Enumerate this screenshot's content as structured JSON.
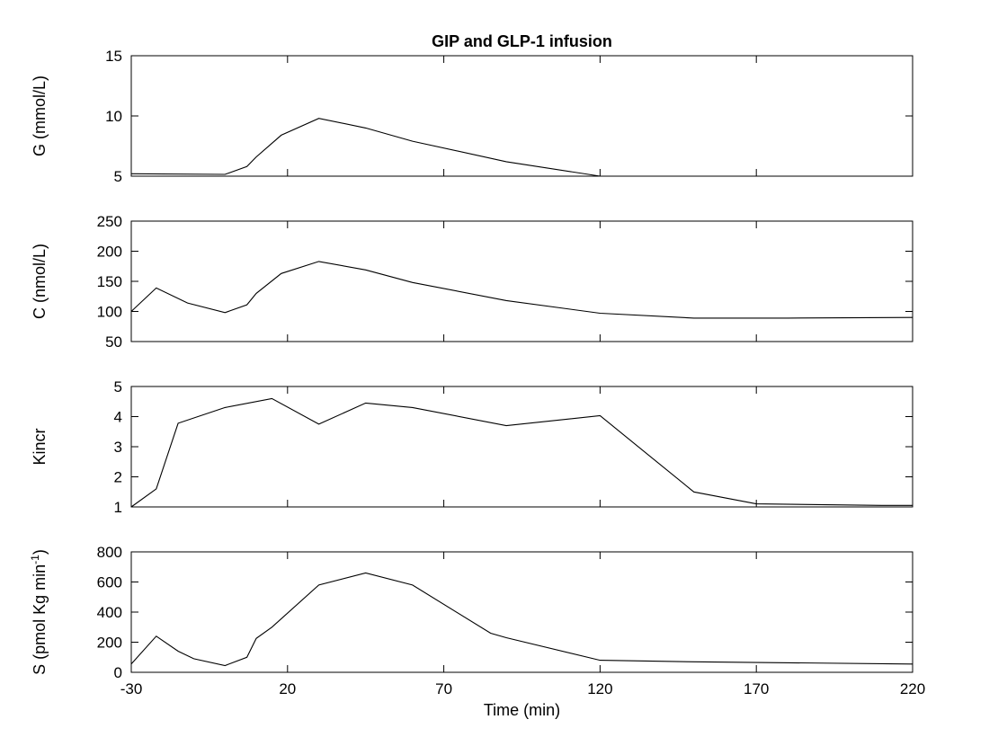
{
  "chart_data": {
    "type": "line",
    "title": "GIP and GLP-1 infusion",
    "xlabel": "Time (min)",
    "xlim": [
      -30,
      220
    ],
    "xticks": [
      -30,
      20,
      70,
      120,
      170,
      220
    ],
    "xtick_labels": [
      "-30",
      "20",
      "70",
      "120",
      "170",
      "220"
    ],
    "panels": [
      {
        "ylabel": "G (mmol/L)",
        "ylim": [
          5,
          15
        ],
        "yticks": [
          5,
          10,
          15
        ],
        "ytick_labels": [
          "5",
          "10",
          "15"
        ],
        "x": [
          -30,
          0,
          7,
          10,
          18,
          30,
          45,
          60,
          90,
          120,
          125
        ],
        "y": [
          5.2,
          5.15,
          5.8,
          6.6,
          8.4,
          9.8,
          9.0,
          7.9,
          6.2,
          5.0,
          5.0
        ]
      },
      {
        "ylabel": "C (nmol/L)",
        "ylim": [
          50,
          250
        ],
        "yticks": [
          50,
          100,
          150,
          200,
          250
        ],
        "ytick_labels": [
          "50",
          "100",
          "150",
          "200",
          "250"
        ],
        "x": [
          -30,
          -22,
          -12,
          0,
          7,
          10,
          18,
          30,
          45,
          60,
          90,
          120,
          150,
          180,
          220
        ],
        "y": [
          100,
          139,
          114,
          98,
          111,
          130,
          163,
          183,
          169,
          148,
          118,
          97,
          89,
          89,
          90
        ]
      },
      {
        "ylabel": "Kincr",
        "ylim": [
          1,
          5
        ],
        "yticks": [
          1,
          2,
          3,
          4,
          5
        ],
        "ytick_labels": [
          "1",
          "2",
          "3",
          "4",
          "5"
        ],
        "x": [
          -30,
          -22,
          -15,
          0,
          15,
          30,
          45,
          60,
          90,
          120,
          150,
          170,
          210,
          220
        ],
        "y": [
          1.0,
          1.6,
          3.78,
          4.3,
          4.6,
          3.75,
          4.45,
          4.3,
          3.7,
          4.03,
          1.5,
          1.1,
          1.05,
          1.05
        ]
      },
      {
        "ylabel": "S (pmol Kg min",
        "ylabel_sup": "-1",
        "ylabel_end": ")",
        "ylim": [
          0,
          800
        ],
        "yticks": [
          0,
          200,
          400,
          600,
          800
        ],
        "ytick_labels": [
          "0",
          "200",
          "400",
          "600",
          "800"
        ],
        "x": [
          -30,
          -22,
          -15,
          -10,
          0,
          7,
          10,
          15,
          30,
          45,
          60,
          85,
          90,
          120,
          150,
          220
        ],
        "y": [
          55,
          240,
          140,
          90,
          45,
          100,
          225,
          300,
          580,
          660,
          580,
          260,
          230,
          80,
          70,
          55
        ]
      }
    ]
  }
}
